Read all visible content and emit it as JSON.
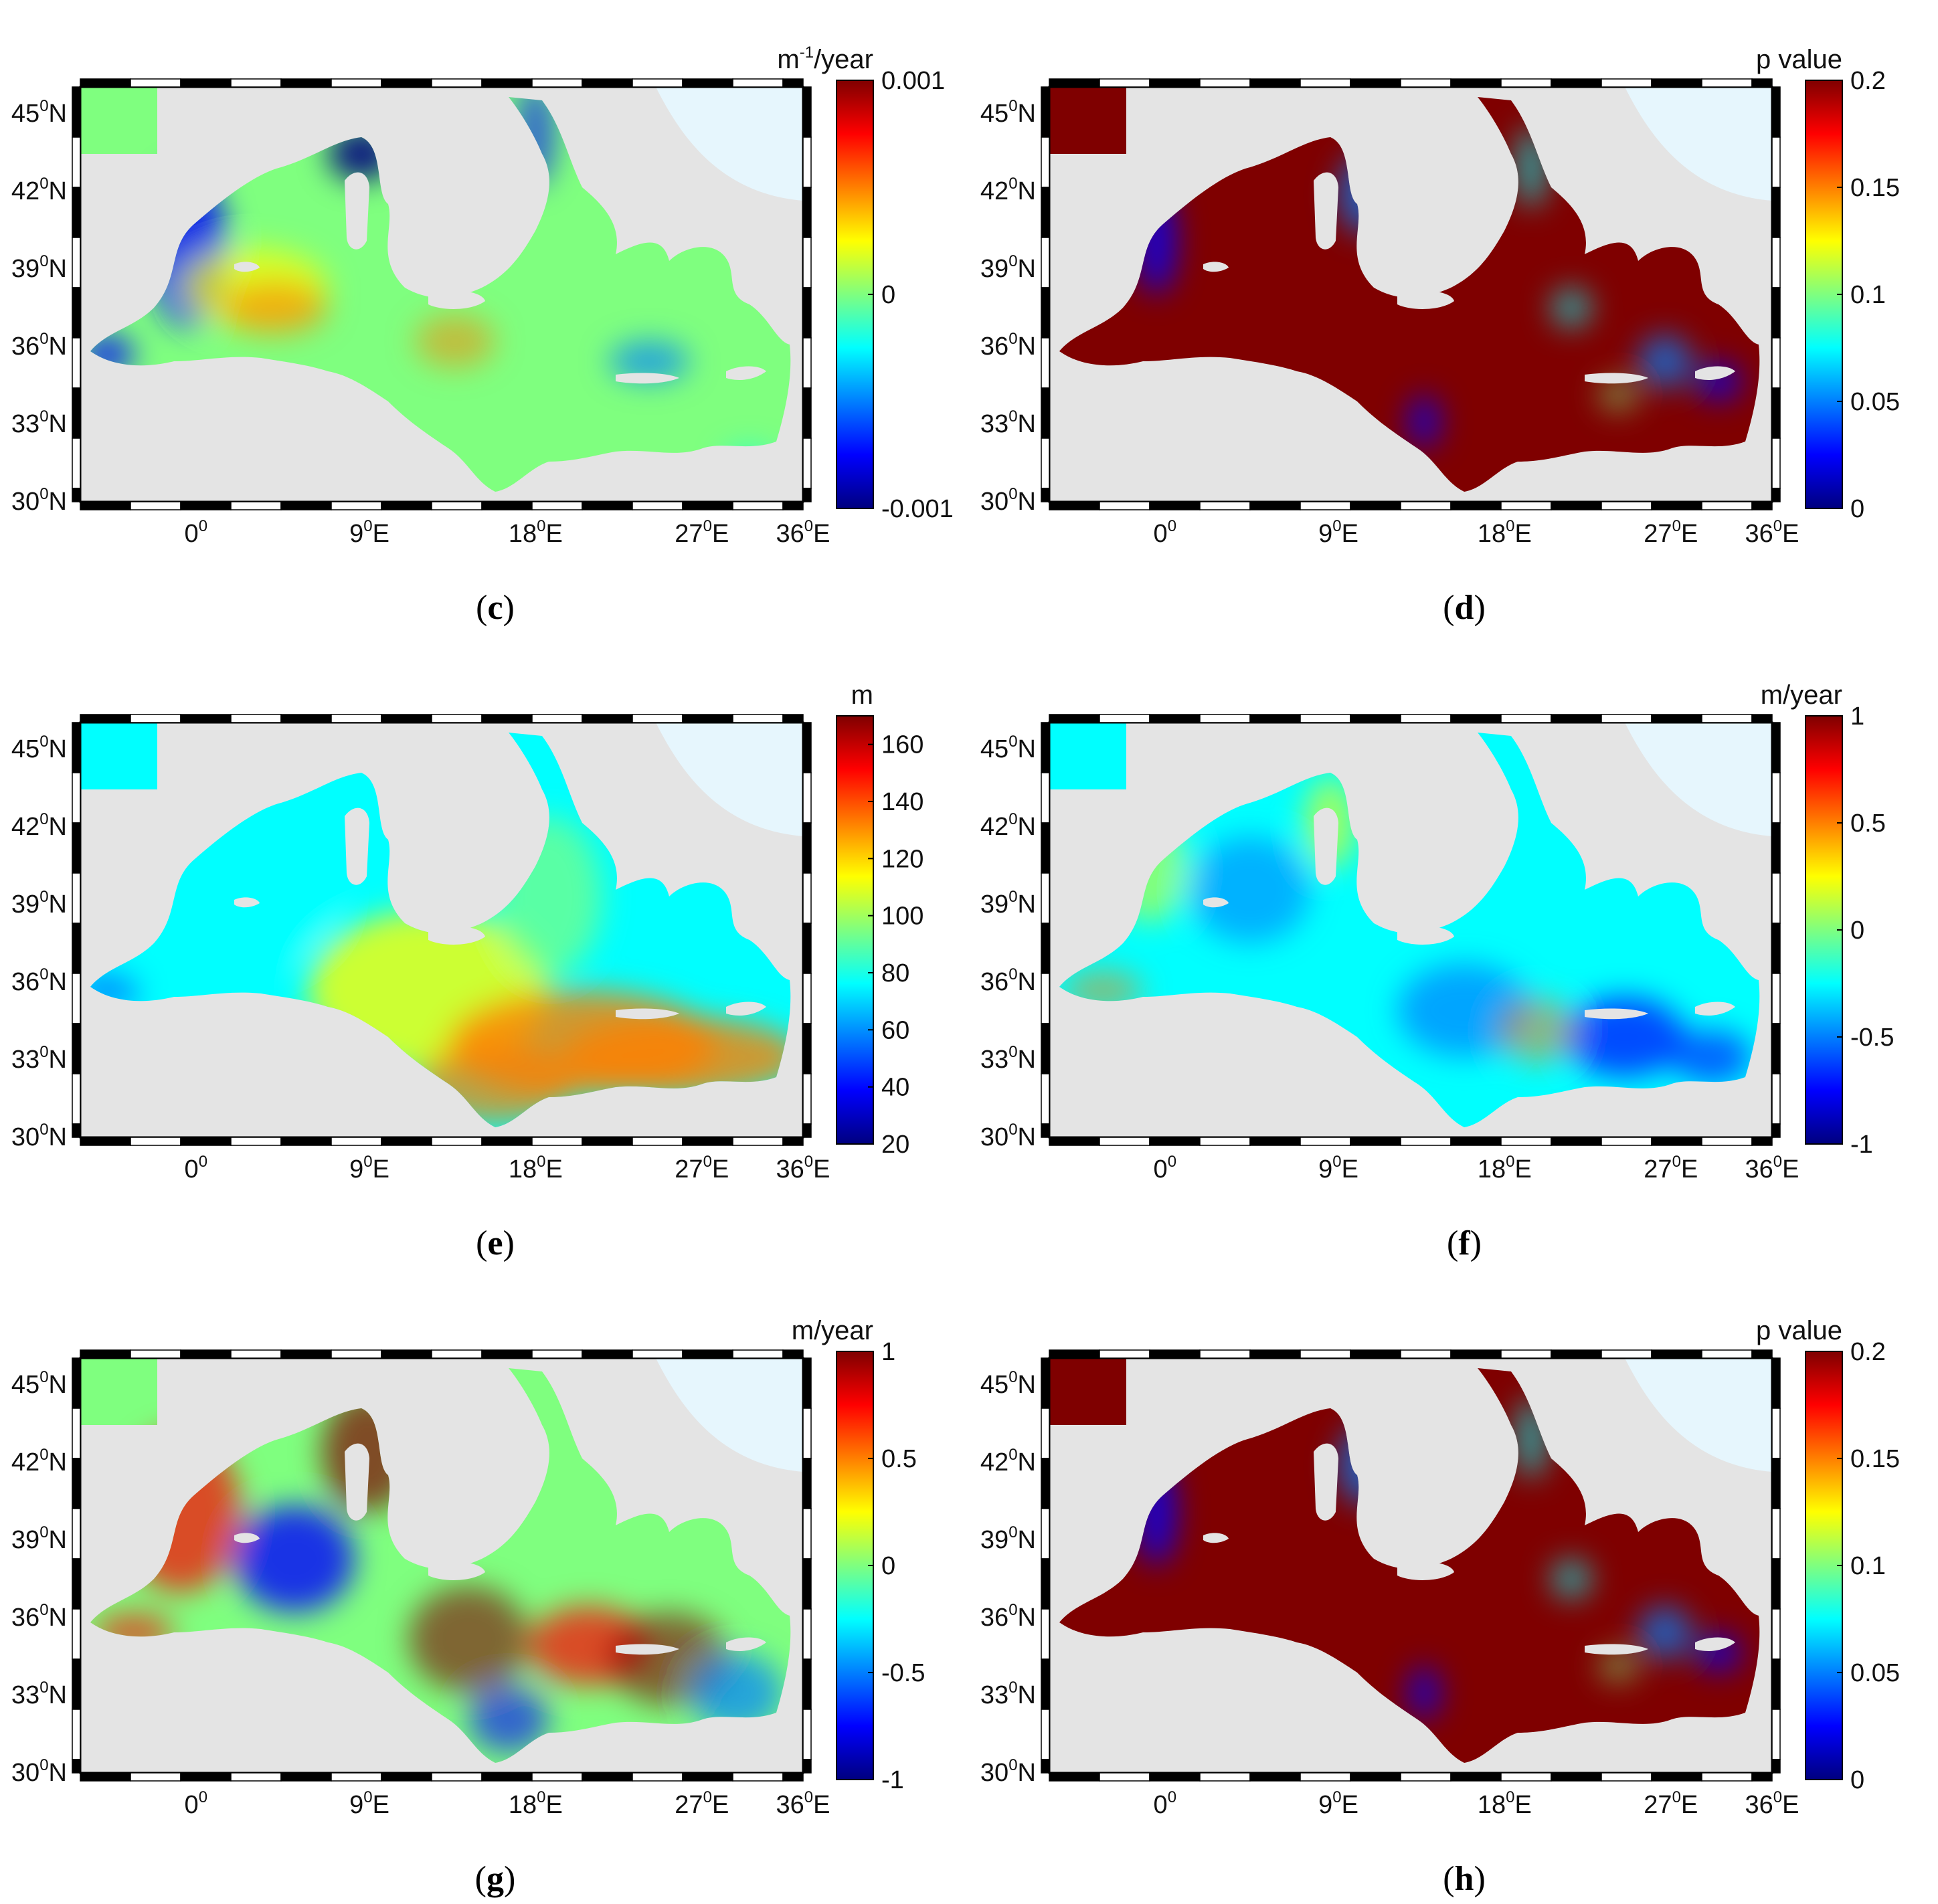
{
  "figure": {
    "latitude_ticks": [
      "30",
      "33",
      "36",
      "39",
      "42",
      "45"
    ],
    "longitude_ticks": [
      {
        "value": "0",
        "hemi": ""
      },
      {
        "value": "9",
        "hemi": "E"
      },
      {
        "value": "18",
        "hemi": "E"
      },
      {
        "value": "27",
        "hemi": "E"
      },
      {
        "value": "36",
        "hemi": "E"
      }
    ],
    "degree_symbol": "0",
    "lat_suffix": "N",
    "colors": {
      "land": "#e4e4e4",
      "black_sea_land": "#e6f6fd",
      "frame": "#000000",
      "jet": [
        "#00007f",
        "#0000ff",
        "#007fff",
        "#00ffff",
        "#7fff7f",
        "#ffff00",
        "#ff7f00",
        "#ff0000",
        "#7f0000"
      ]
    },
    "panels": [
      {
        "id": "c",
        "label": "c",
        "unit": "m⁻¹/year",
        "unit_main": "m",
        "unit_sup": "-1",
        "unit_tail": "/year",
        "colorbar_ticks": [
          "0.001",
          "0",
          "-0.001"
        ],
        "tick_positions": [
          1,
          0.5,
          0
        ],
        "field": "trend_small"
      },
      {
        "id": "d",
        "label": "d",
        "unit": "p value",
        "unit_main": "p value",
        "unit_sup": "",
        "unit_tail": "",
        "colorbar_ticks": [
          "0.2",
          "0.15",
          "0.1",
          "0.05",
          "0"
        ],
        "tick_positions": [
          1,
          0.75,
          0.5,
          0.25,
          0
        ],
        "field": "pvalue"
      },
      {
        "id": "e",
        "label": "e",
        "unit": "m",
        "unit_main": "m",
        "unit_sup": "",
        "unit_tail": "",
        "colorbar_ticks": [
          "160",
          "140",
          "120",
          "100",
          "80",
          "60",
          "40",
          "20"
        ],
        "tick_positions": [
          0.9333,
          0.8,
          0.6667,
          0.5333,
          0.4,
          0.2667,
          0.1333,
          0
        ],
        "field": "depth"
      },
      {
        "id": "f",
        "label": "f",
        "unit": "m/year",
        "unit_main": "m/year",
        "unit_sup": "",
        "unit_tail": "",
        "colorbar_ticks": [
          "1",
          "0.5",
          "0",
          "-0.5",
          "-1"
        ],
        "tick_positions": [
          1,
          0.75,
          0.5,
          0.25,
          0
        ],
        "field": "trend_mild"
      },
      {
        "id": "g",
        "label": "g",
        "unit": "m/year",
        "unit_main": "m/year",
        "unit_sup": "",
        "unit_tail": "",
        "colorbar_ticks": [
          "1",
          "0.5",
          "0",
          "-0.5",
          "-1"
        ],
        "tick_positions": [
          1,
          0.75,
          0.5,
          0.25,
          0
        ],
        "field": "trend_strong"
      },
      {
        "id": "h",
        "label": "h",
        "unit": "p value",
        "unit_main": "p value",
        "unit_sup": "",
        "unit_tail": "",
        "colorbar_ticks": [
          "0.2",
          "0.15",
          "0.1",
          "0.05",
          "0"
        ],
        "tick_positions": [
          1,
          0.75,
          0.5,
          0.25,
          0
        ],
        "field": "pvalue"
      }
    ]
  }
}
